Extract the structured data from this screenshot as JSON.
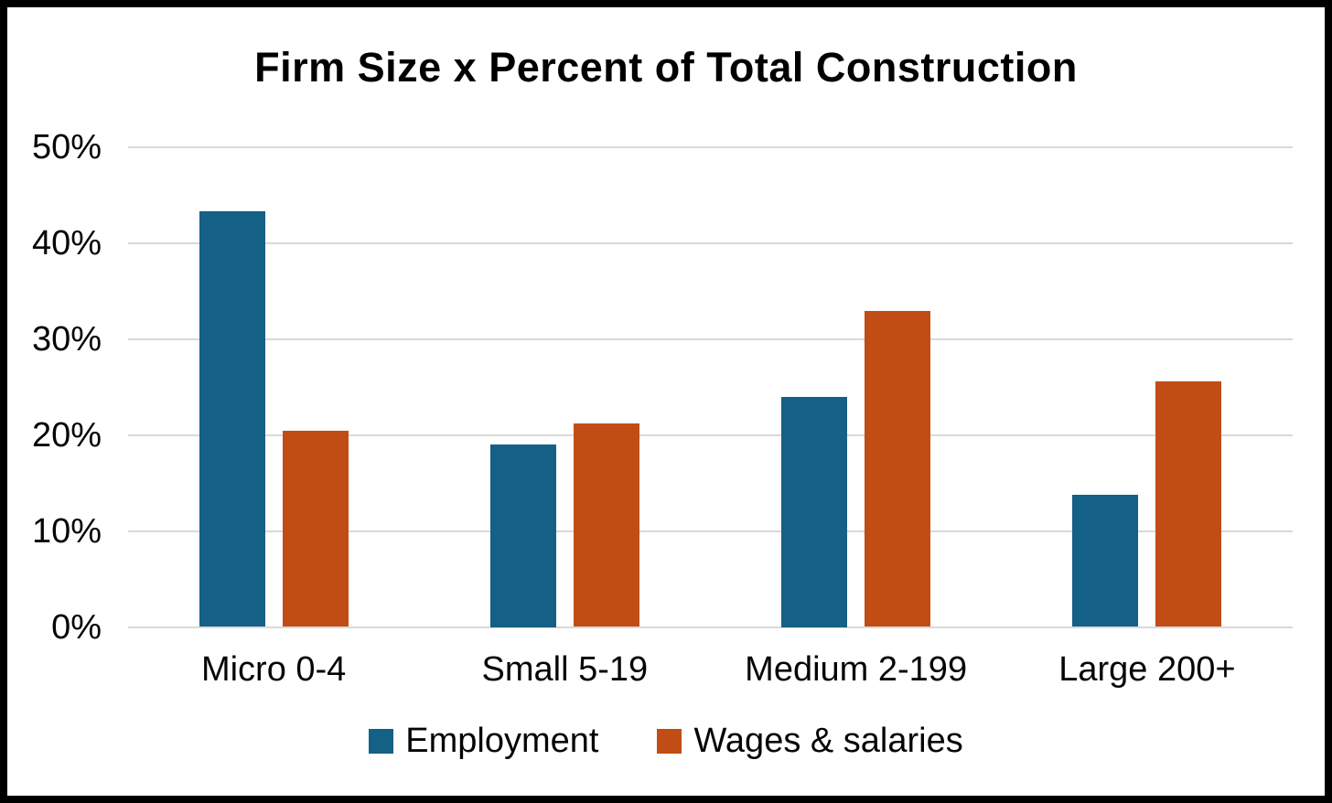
{
  "chart_data": {
    "type": "bar",
    "title": "Firm Size x Percent of Total Construction",
    "categories": [
      "Micro 0-4",
      "Small 5-19",
      "Medium 2-199",
      "Large 200+"
    ],
    "series": [
      {
        "name": "Employment",
        "color": "#156086",
        "values": [
          43.3,
          19.0,
          24.0,
          13.8
        ]
      },
      {
        "name": "Wages & salaries",
        "color": "#C14D15",
        "values": [
          20.4,
          21.2,
          32.9,
          25.6
        ]
      }
    ],
    "xlabel": "",
    "ylabel": "",
    "unit": "%",
    "ylim": [
      0,
      50
    ],
    "y_ticks": [
      {
        "value": 0,
        "label": "0%"
      },
      {
        "value": 10,
        "label": "10%"
      },
      {
        "value": 20,
        "label": "20%"
      },
      {
        "value": 30,
        "label": "30%"
      },
      {
        "value": 40,
        "label": "40%"
      },
      {
        "value": 50,
        "label": "50%"
      }
    ],
    "grid": true,
    "gridline_color": "#d9d9d9",
    "legend_position": "bottom"
  }
}
